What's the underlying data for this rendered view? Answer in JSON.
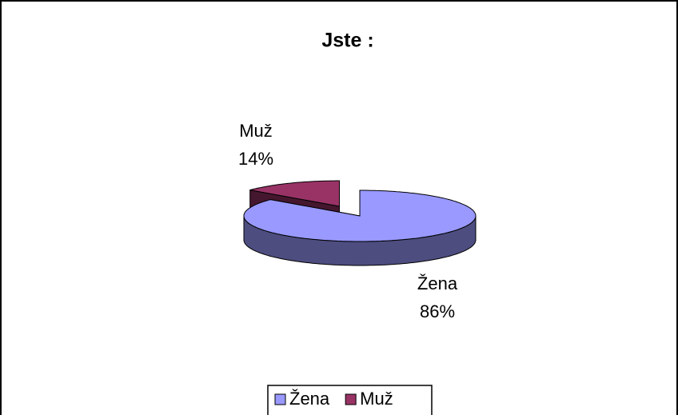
{
  "chart_data": {
    "type": "pie",
    "title": "Jste :",
    "categories": [
      "Žena",
      "Muž"
    ],
    "values": [
      86,
      14
    ],
    "value_labels": [
      "86%",
      "14%"
    ],
    "colors": [
      "#9999ff",
      "#993366"
    ],
    "legend": "bottom"
  }
}
